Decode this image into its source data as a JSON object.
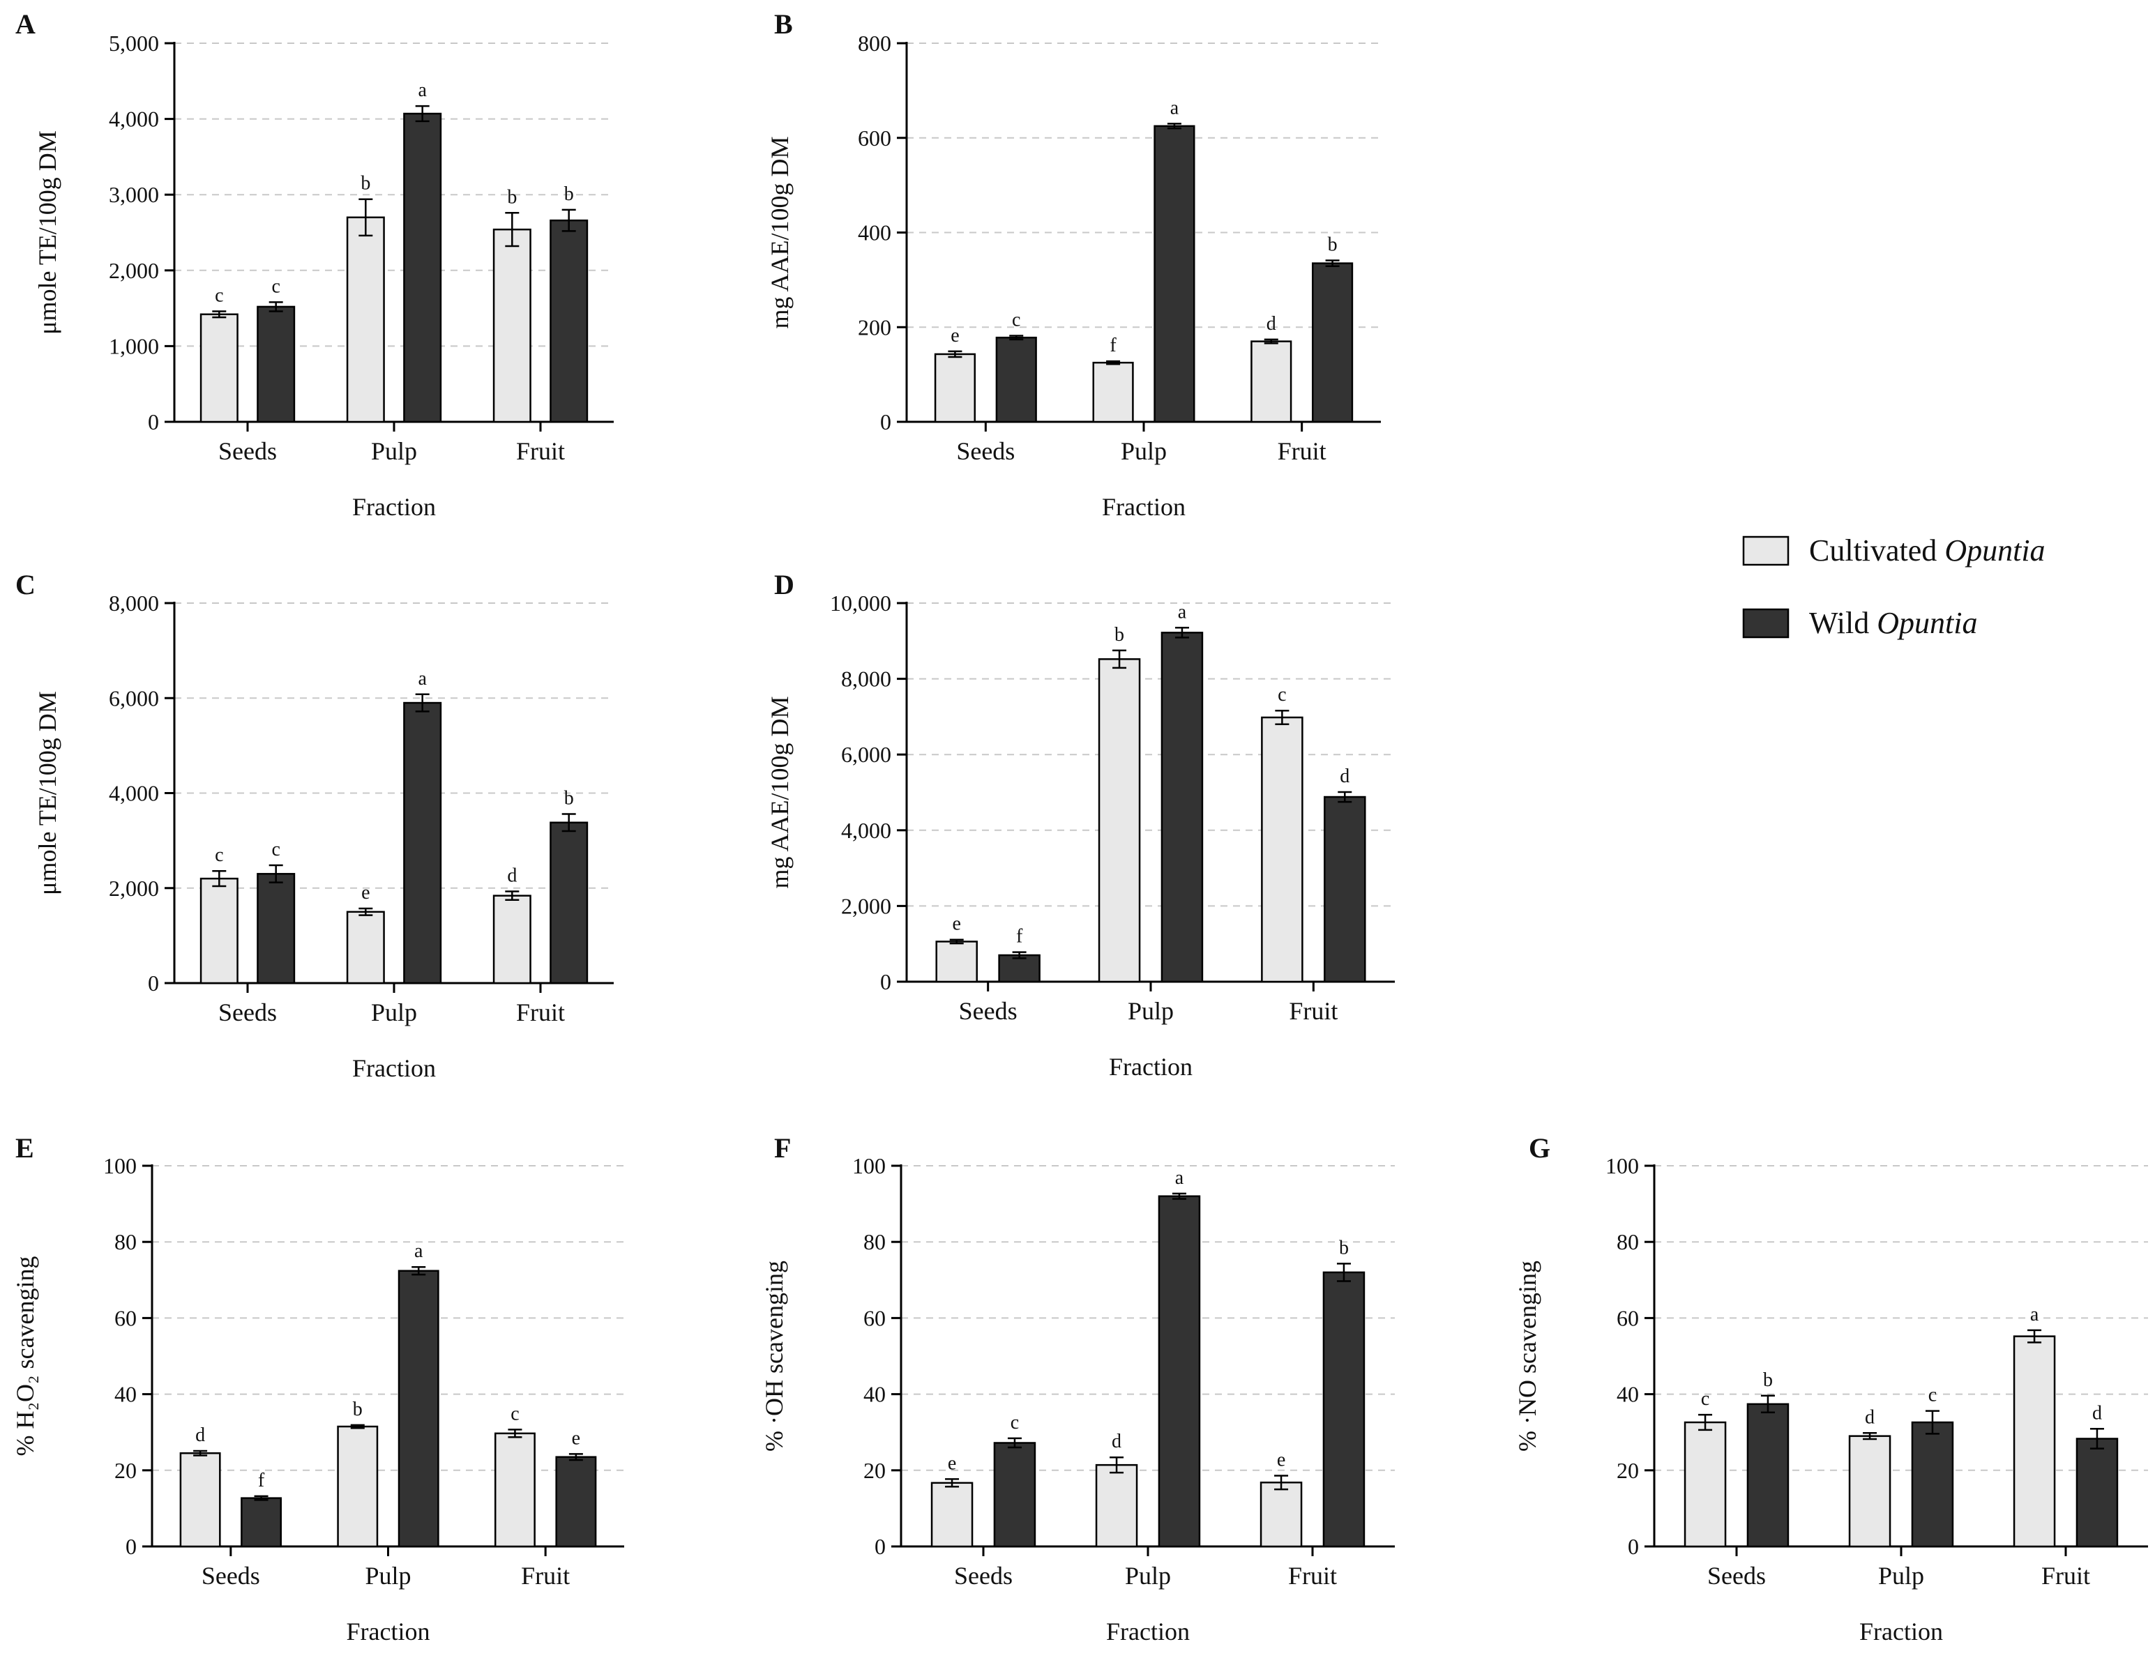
{
  "legend": {
    "items": [
      {
        "prefix": "Cultivated ",
        "italic": "Opuntia",
        "color": "#e8e8e8"
      },
      {
        "prefix": "Wild ",
        "italic": "Opuntia",
        "color": "#333333"
      }
    ]
  },
  "chart_data": [
    {
      "panel": "A",
      "type": "bar",
      "categories": [
        "Seeds",
        "Pulp",
        "Fruit"
      ],
      "xlabel": "Fraction",
      "ylabel": "μmole TE/100g DM",
      "ylim": [
        0,
        5000
      ],
      "ticks": [
        "0",
        "1,000",
        "2,000",
        "3,000",
        "4,000",
        "5,000"
      ],
      "grid": true,
      "series": [
        {
          "name": "Cultivated Opuntia",
          "values": [
            1420,
            2700,
            2540
          ],
          "errors": [
            40,
            240,
            220
          ],
          "labels": [
            "c",
            "b",
            "b"
          ]
        },
        {
          "name": "Wild Opuntia",
          "values": [
            1520,
            4070,
            2660
          ],
          "errors": [
            60,
            100,
            140
          ],
          "labels": [
            "c",
            "a",
            "b"
          ]
        }
      ]
    },
    {
      "panel": "B",
      "type": "bar",
      "categories": [
        "Seeds",
        "Pulp",
        "Fruit"
      ],
      "xlabel": "Fraction",
      "ylabel": "mg AAE/100g DM",
      "ylim": [
        0,
        800
      ],
      "ticks": [
        "0",
        "200",
        "400",
        "600",
        "800"
      ],
      "grid": true,
      "series": [
        {
          "name": "Cultivated Opuntia",
          "values": [
            143,
            125,
            170
          ],
          "errors": [
            6,
            3,
            4
          ],
          "labels": [
            "e",
            "f",
            "d"
          ]
        },
        {
          "name": "Wild Opuntia",
          "values": [
            178,
            625,
            335
          ],
          "errors": [
            4,
            5,
            6
          ],
          "labels": [
            "c",
            "a",
            "b"
          ]
        }
      ]
    },
    {
      "panel": "C",
      "type": "bar",
      "categories": [
        "Seeds",
        "Pulp",
        "Fruit"
      ],
      "xlabel": "Fraction",
      "ylabel": "μmole TE/100g DM",
      "ylim": [
        0,
        8000
      ],
      "ticks": [
        "0",
        "2,000",
        "4,000",
        "6,000",
        "8,000"
      ],
      "grid": true,
      "series": [
        {
          "name": "Cultivated Opuntia",
          "values": [
            2200,
            1500,
            1840
          ],
          "errors": [
            160,
            70,
            90
          ],
          "labels": [
            "c",
            "e",
            "d"
          ]
        },
        {
          "name": "Wild Opuntia",
          "values": [
            2300,
            5900,
            3380
          ],
          "errors": [
            180,
            180,
            180
          ],
          "labels": [
            "c",
            "a",
            "b"
          ]
        }
      ]
    },
    {
      "panel": "D",
      "type": "bar",
      "categories": [
        "Seeds",
        "Pulp",
        "Fruit"
      ],
      "xlabel": "Fraction",
      "ylabel": "mg AAE/100g DM",
      "ylim": [
        0,
        10000
      ],
      "ticks": [
        "0",
        "2,000",
        "4,000",
        "6,000",
        "8,000",
        "10,000"
      ],
      "grid": true,
      "series": [
        {
          "name": "Cultivated Opuntia",
          "values": [
            1060,
            8520,
            6980
          ],
          "errors": [
            50,
            230,
            180
          ],
          "labels": [
            "e",
            "b",
            "c"
          ]
        },
        {
          "name": "Wild Opuntia",
          "values": [
            700,
            9220,
            4880
          ],
          "errors": [
            80,
            130,
            130
          ],
          "labels": [
            "f",
            "a",
            "d"
          ]
        }
      ]
    },
    {
      "panel": "E",
      "type": "bar",
      "categories": [
        "Seeds",
        "Pulp",
        "Fruit"
      ],
      "xlabel": "Fraction",
      "ylabel": "% H₂O₂ scavenging",
      "ylim": [
        0,
        100
      ],
      "ticks": [
        "0",
        "20",
        "40",
        "60",
        "80",
        "100"
      ],
      "grid": true,
      "series": [
        {
          "name": "Cultivated Opuntia",
          "values": [
            24.5,
            31.5,
            29.7
          ],
          "errors": [
            0.6,
            0.4,
            1.0
          ],
          "labels": [
            "d",
            "b",
            "c"
          ]
        },
        {
          "name": "Wild Opuntia",
          "values": [
            12.7,
            72.4,
            23.5
          ],
          "errors": [
            0.5,
            1.0,
            0.8
          ],
          "labels": [
            "f",
            "a",
            "e"
          ]
        }
      ]
    },
    {
      "panel": "F",
      "type": "bar",
      "categories": [
        "Seeds",
        "Pulp",
        "Fruit"
      ],
      "xlabel": "Fraction",
      "ylabel": "% ·OH scavenging",
      "ylim": [
        0,
        100
      ],
      "ticks": [
        "0",
        "20",
        "40",
        "60",
        "80",
        "100"
      ],
      "grid": true,
      "series": [
        {
          "name": "Cultivated Opuntia",
          "values": [
            16.7,
            21.4,
            16.8
          ],
          "errors": [
            1.0,
            2.0,
            1.8
          ],
          "labels": [
            "e",
            "d",
            "e"
          ]
        },
        {
          "name": "Wild Opuntia",
          "values": [
            27.2,
            92.0,
            72.0
          ],
          "errors": [
            1.2,
            0.7,
            2.3
          ],
          "labels": [
            "c",
            "a",
            "b"
          ]
        }
      ]
    },
    {
      "panel": "G",
      "type": "bar",
      "categories": [
        "Seeds",
        "Pulp",
        "Fruit"
      ],
      "xlabel": "Fraction",
      "ylabel": "% ·NO scavenging",
      "ylim": [
        0,
        100
      ],
      "ticks": [
        "0",
        "20",
        "40",
        "60",
        "80",
        "100"
      ],
      "grid": true,
      "series": [
        {
          "name": "Cultivated Opuntia",
          "values": [
            32.6,
            29.0,
            55.2
          ],
          "errors": [
            2.0,
            0.8,
            1.6
          ],
          "labels": [
            "c",
            "d",
            "a"
          ]
        },
        {
          "name": "Wild Opuntia",
          "values": [
            37.4,
            32.6,
            28.3
          ],
          "errors": [
            2.2,
            3.0,
            2.6
          ],
          "labels": [
            "b",
            "c",
            "d"
          ]
        }
      ]
    }
  ]
}
